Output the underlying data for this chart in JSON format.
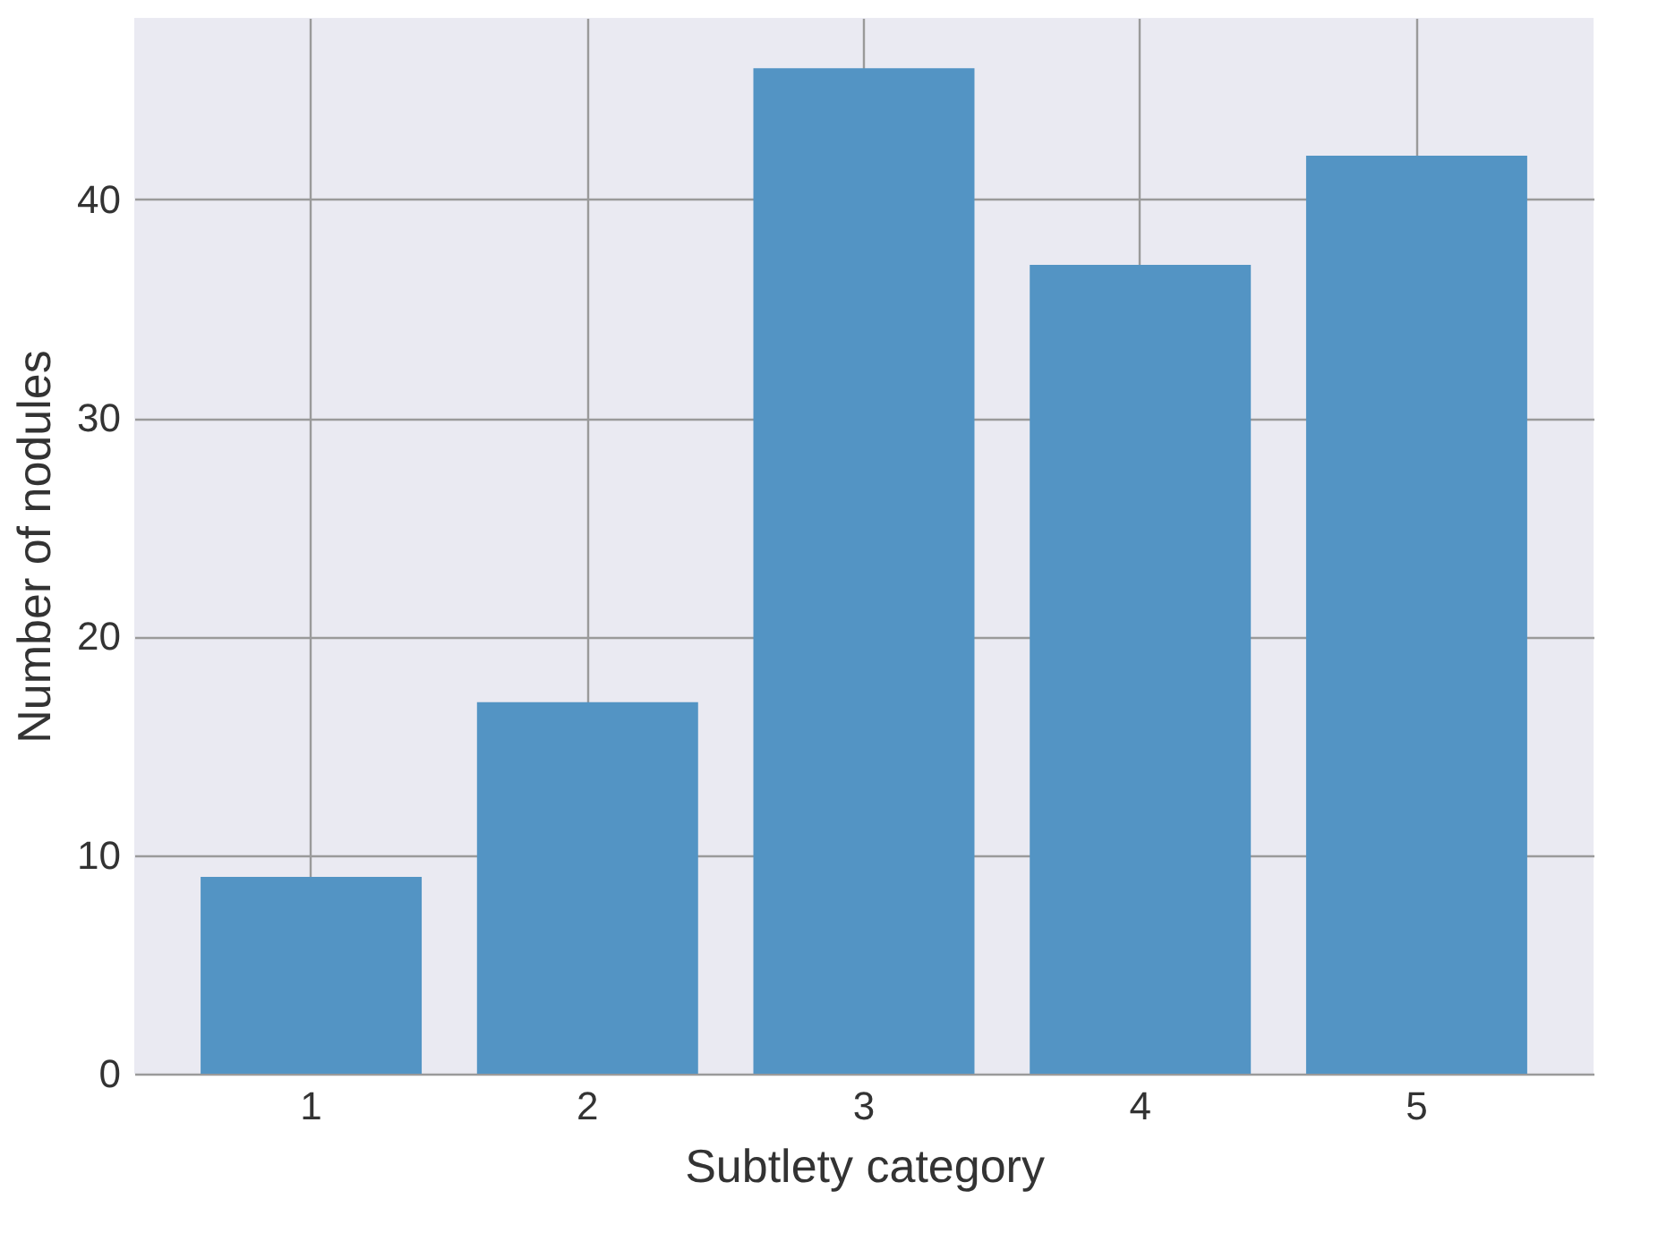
{
  "chart_data": {
    "type": "bar",
    "xlabel": "Subtlety category",
    "ylabel": "Number of nodules",
    "categories": [
      "1",
      "2",
      "3",
      "4",
      "5"
    ],
    "values": [
      9,
      17,
      46,
      37,
      42
    ],
    "color": "#5394c4",
    "ylim": [
      0,
      48.3
    ],
    "yticks": [
      0,
      10,
      20,
      30,
      40
    ],
    "grid": true
  }
}
